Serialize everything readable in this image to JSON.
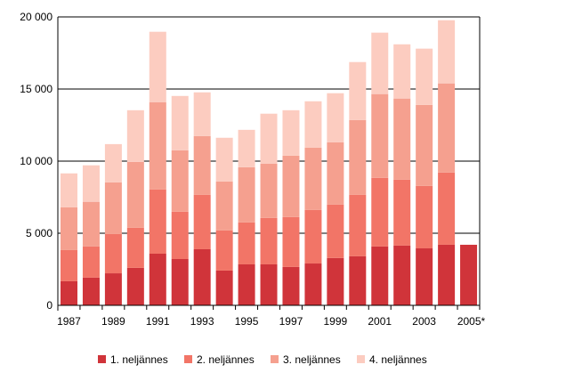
{
  "chart_data": {
    "type": "bar",
    "stacked": true,
    "categories": [
      "1987",
      "1988",
      "1989",
      "1990",
      "1991",
      "1992",
      "1993",
      "1994",
      "1995",
      "1996",
      "1997",
      "1998",
      "1999",
      "2000",
      "2001",
      "2002",
      "2003",
      "2004",
      "2005*"
    ],
    "x_tick_labels": [
      "1987",
      "1989",
      "1991",
      "1993",
      "1995",
      "1997",
      "1999",
      "2001",
      "2003",
      "2005*"
    ],
    "y_tick_labels": [
      "0",
      "5 000",
      "10 000",
      "15 000",
      "20 000"
    ],
    "y_ticks": [
      0,
      5000,
      10000,
      15000,
      20000
    ],
    "ylim": [
      0,
      20000
    ],
    "grid": true,
    "legend_position": "bottom",
    "series": [
      {
        "name": "1. neljännes",
        "color": "#d0343a",
        "values": [
          1670,
          1920,
          2220,
          2600,
          3580,
          3210,
          3890,
          2410,
          2840,
          2840,
          2660,
          2900,
          3280,
          3400,
          4080,
          4140,
          3950,
          4200,
          4200
        ]
      },
      {
        "name": "2. neljännes",
        "color": "#f27567",
        "values": [
          2160,
          2170,
          2720,
          2780,
          4450,
          3280,
          3770,
          2780,
          2910,
          3220,
          3460,
          3710,
          3700,
          4260,
          4760,
          4570,
          4330,
          5010,
          null
        ]
      },
      {
        "name": "3. neljännes",
        "color": "#f5a08f",
        "values": [
          2970,
          3090,
          3590,
          4570,
          6060,
          4260,
          4080,
          3400,
          3830,
          3770,
          4260,
          4330,
          4330,
          5190,
          5810,
          5630,
          5620,
          6180,
          null
        ]
      },
      {
        "name": "4. neljännes",
        "color": "#fcccc0",
        "values": [
          2350,
          2530,
          2650,
          3580,
          4880,
          3770,
          3030,
          3030,
          2590,
          3460,
          3150,
          3210,
          3400,
          4020,
          4260,
          3760,
          3900,
          4380,
          null
        ]
      }
    ]
  }
}
